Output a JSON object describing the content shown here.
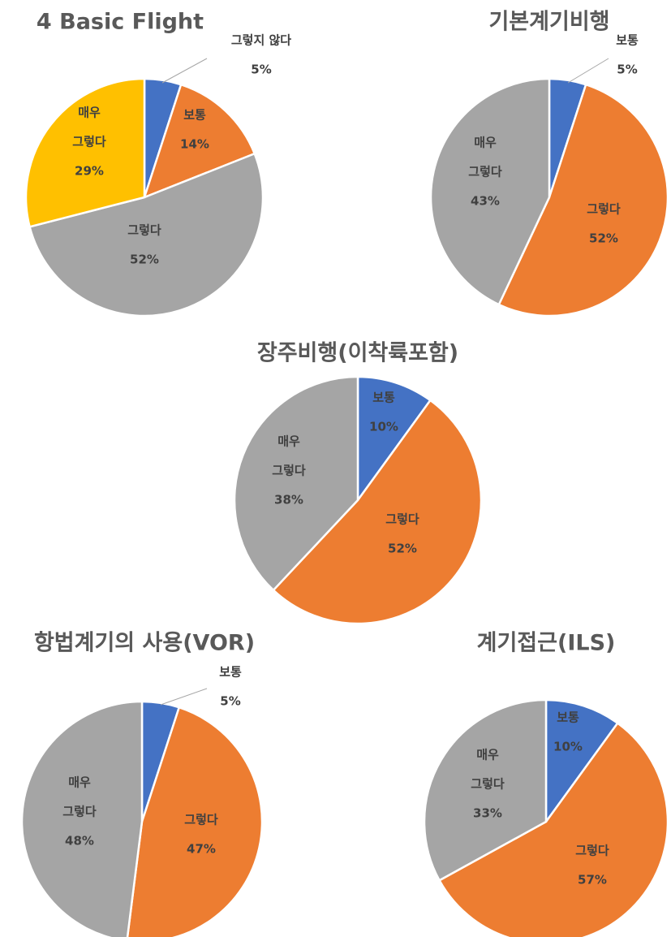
{
  "colors": {
    "boutong": "#4472c4",
    "geureotda": "#ed7d31",
    "gray": "#a5a5a5",
    "gold": "#ffc000"
  },
  "chart_data": [
    {
      "type": "pie",
      "title": "4  Basic Flight",
      "slices": [
        {
          "label": "그렇지 않다",
          "value": 5,
          "text": "5%",
          "color": "#4472c4"
        },
        {
          "label": "보통",
          "value": 14,
          "text": "14%",
          "color": "#ed7d31"
        },
        {
          "label": "그렇다",
          "value": 52,
          "text": "52%",
          "color": "#a5a5a5"
        },
        {
          "label": "매우 그렇다",
          "value": 29,
          "text": "29%",
          "color": "#ffc000"
        }
      ]
    },
    {
      "type": "pie",
      "title": "기본계기비행",
      "slices": [
        {
          "label": "보통",
          "value": 5,
          "text": "5%",
          "color": "#4472c4"
        },
        {
          "label": "그렇다",
          "value": 52,
          "text": "52%",
          "color": "#ed7d31"
        },
        {
          "label": "매우 그렇다",
          "value": 43,
          "text": "43%",
          "color": "#a5a5a5"
        }
      ]
    },
    {
      "type": "pie",
      "title": "장주비행(이착륙포함)",
      "slices": [
        {
          "label": "보통",
          "value": 10,
          "text": "10%",
          "color": "#4472c4"
        },
        {
          "label": "그렇다",
          "value": 52,
          "text": "52%",
          "color": "#ed7d31"
        },
        {
          "label": "매우 그렇다",
          "value": 38,
          "text": "38%",
          "color": "#a5a5a5"
        }
      ]
    },
    {
      "type": "pie",
      "title": "항법계기의 사용(VOR)",
      "slices": [
        {
          "label": "보통",
          "value": 5,
          "text": "5%",
          "color": "#4472c4"
        },
        {
          "label": "그렇다",
          "value": 47,
          "text": "47%",
          "color": "#ed7d31"
        },
        {
          "label": "매우 그렇다",
          "value": 48,
          "text": "48%",
          "color": "#a5a5a5"
        }
      ]
    },
    {
      "type": "pie",
      "title": "계기접근(ILS)",
      "slices": [
        {
          "label": "보통",
          "value": 10,
          "text": "10%",
          "color": "#4472c4"
        },
        {
          "label": "그렇다",
          "value": 57,
          "text": "57%",
          "color": "#ed7d31"
        },
        {
          "label": "매우 그렇다",
          "value": 33,
          "text": "33%",
          "color": "#a5a5a5"
        }
      ]
    }
  ]
}
